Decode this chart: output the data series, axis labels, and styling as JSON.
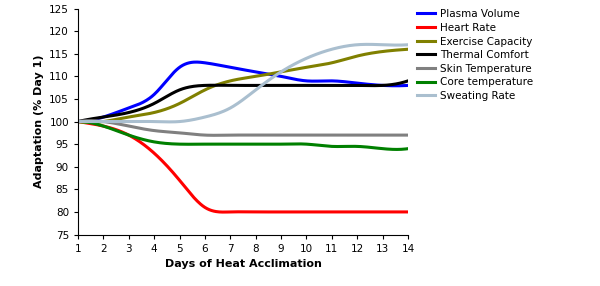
{
  "xlabel": "Days of Heat Acclimation",
  "ylabel": "Adaptation (% Day 1)",
  "xlim": [
    1,
    14
  ],
  "ylim": [
    75,
    125
  ],
  "yticks": [
    75,
    80,
    85,
    90,
    95,
    100,
    105,
    110,
    115,
    120,
    125
  ],
  "xticks": [
    1,
    2,
    3,
    4,
    5,
    6,
    7,
    8,
    9,
    10,
    11,
    12,
    13,
    14
  ],
  "series": {
    "Plasma Volume": {
      "color": "#0000FF",
      "linewidth": 2.2,
      "x": [
        1,
        2,
        3,
        4,
        5,
        6,
        7,
        8,
        9,
        10,
        11,
        12,
        13,
        14
      ],
      "y": [
        100,
        101,
        103,
        106,
        112,
        113,
        112,
        111,
        110,
        109,
        109,
        108.5,
        108,
        108
      ]
    },
    "Heart Rate": {
      "color": "#FF0000",
      "linewidth": 2.2,
      "x": [
        1,
        2,
        3,
        4,
        5,
        6,
        7,
        8,
        9,
        10,
        11,
        12,
        13,
        14
      ],
      "y": [
        100,
        99,
        97,
        93,
        87,
        81,
        80,
        80,
        80,
        80,
        80,
        80,
        80,
        80
      ]
    },
    "Exercise Capacity": {
      "color": "#808000",
      "linewidth": 2.2,
      "x": [
        1,
        2,
        3,
        4,
        5,
        6,
        7,
        8,
        9,
        10,
        11,
        12,
        13,
        14
      ],
      "y": [
        100,
        100,
        101,
        102,
        104,
        107,
        109,
        110,
        111,
        112,
        113,
        114.5,
        115.5,
        116
      ]
    },
    "Thermal Comfort": {
      "color": "#000000",
      "linewidth": 2.2,
      "x": [
        1,
        2,
        3,
        4,
        5,
        6,
        7,
        8,
        9,
        10,
        11,
        12,
        13,
        14
      ],
      "y": [
        100,
        101,
        102,
        104,
        107,
        108,
        108,
        108,
        108,
        108,
        108,
        108,
        108,
        109
      ]
    },
    "Skin Temperature": {
      "color": "#808080",
      "linewidth": 2.2,
      "x": [
        1,
        2,
        3,
        4,
        5,
        6,
        7,
        8,
        9,
        10,
        11,
        12,
        13,
        14
      ],
      "y": [
        100,
        100,
        99,
        98,
        97.5,
        97,
        97,
        97,
        97,
        97,
        97,
        97,
        97,
        97
      ]
    },
    "Core temperature": {
      "color": "#008000",
      "linewidth": 2.2,
      "x": [
        1,
        2,
        3,
        4,
        5,
        6,
        7,
        8,
        9,
        10,
        11,
        12,
        13,
        14
      ],
      "y": [
        100,
        99,
        97,
        95.5,
        95,
        95,
        95,
        95,
        95,
        95,
        94.5,
        94.5,
        94,
        94
      ]
    },
    "Sweating Rate": {
      "color": "#AABFCF",
      "linewidth": 2.2,
      "x": [
        1,
        2,
        3,
        4,
        5,
        6,
        7,
        8,
        9,
        10,
        11,
        12,
        13,
        14
      ],
      "y": [
        100,
        100,
        100,
        100,
        100,
        101,
        103,
        107,
        111,
        114,
        116,
        117,
        117,
        117
      ]
    }
  },
  "legend_order": [
    "Plasma Volume",
    "Heart Rate",
    "Exercise Capacity",
    "Thermal Comfort",
    "Skin Temperature",
    "Core temperature",
    "Sweating Rate"
  ],
  "background_color": "#FFFFFF",
  "spine_color": "#000000"
}
